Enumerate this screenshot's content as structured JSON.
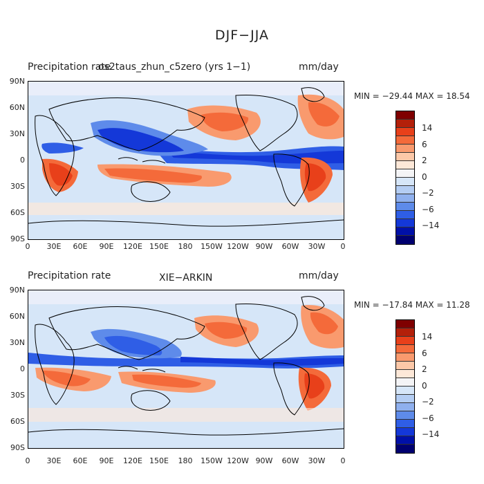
{
  "title": "DJF−JJA",
  "palette": [
    "#7f0000",
    "#b3200a",
    "#e8401a",
    "#f46a3a",
    "#f99a6e",
    "#fcc8a8",
    "#fde8d8",
    "#f4f4f6",
    "#d6e6f8",
    "#b4cdf3",
    "#8fb0ee",
    "#5e8bea",
    "#2f5ee6",
    "#1438d8",
    "#0010a8",
    "#000070"
  ],
  "cbar_labels": [
    "14",
    "6",
    "2",
    "0",
    "−2",
    "−6",
    "−14"
  ],
  "lat_labels": [
    "90N",
    "60N",
    "30N",
    "0",
    "30S",
    "60S",
    "90S"
  ],
  "lon_labels": [
    "0",
    "30E",
    "60E",
    "90E",
    "120E",
    "150E",
    "180",
    "150W",
    "120W",
    "90W",
    "60W",
    "30W",
    "0"
  ],
  "panels": [
    {
      "title_left": "Precipitation rate",
      "title_center": "os2taus_zhun_c5zero (yrs 1−1)",
      "units": "mm/day",
      "stats": "MIN = −29.44  MAX =  18.54"
    },
    {
      "title_left": "Precipitation rate",
      "title_center": "XIE−ARKIN",
      "units": "mm/day",
      "stats": "MIN = −17.84  MAX =  11.28"
    }
  ]
}
